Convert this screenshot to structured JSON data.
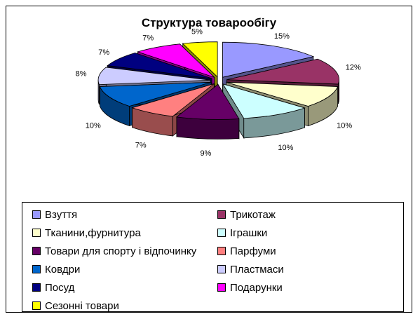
{
  "chart_data": {
    "type": "pie",
    "title": "Структура товарообігу",
    "categories": [
      "Взуття",
      "Трикотаж",
      "Тканини,фурнитура",
      "Іграшки",
      "Товари для спорту і відпочинку",
      "Парфуми",
      "Ковдри",
      "Пластмаси",
      "Посуд",
      "Подарунки",
      "Сезонні товари"
    ],
    "values": [
      15,
      12,
      10,
      10,
      9,
      7,
      10,
      8,
      7,
      7,
      5
    ],
    "labels": [
      "15%",
      "12%",
      "10%",
      "10%",
      "9%",
      "7%",
      "10%",
      "8%",
      "7%",
      "7%",
      "5%"
    ],
    "colors": [
      "#9999ff",
      "#993366",
      "#ffffcc",
      "#ccffff",
      "#660066",
      "#ff8080",
      "#0066cc",
      "#ccccff",
      "#000080",
      "#ff00ff",
      "#ffff00"
    ],
    "legend_position": "bottom",
    "exploded": true,
    "three_d": true
  }
}
